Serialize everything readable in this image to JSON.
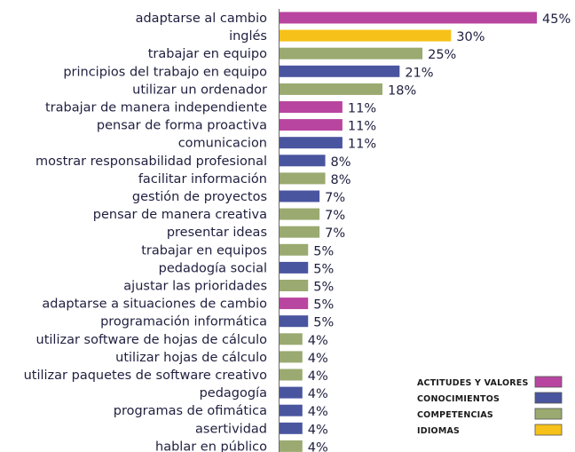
{
  "chart_data": {
    "type": "bar",
    "orientation": "horizontal",
    "value_suffix": "%",
    "grid": false,
    "legend_position": "bottom-right",
    "colors": {
      "ACTITUDES Y VALORES": "#b8459f",
      "CONOCIMIENTOS": "#4a55a0",
      "COMPETENCIAS": "#9aaa70",
      "IDIOMAS": "#f6c118"
    },
    "legend": [
      "ACTITUDES Y VALORES",
      "CONOCIMIENTOS",
      "COMPETENCIAS",
      "IDIOMAS"
    ],
    "categories": [
      "adaptarse al cambio",
      "inglés",
      "trabajar en equipo",
      "principios del trabajo en equipo",
      "utilizar un ordenador",
      "trabajar de manera independiente",
      "pensar de forma proactiva",
      "comunicacion",
      "mostrar responsabilidad profesional",
      "facilitar información",
      "gestión de proyectos",
      "pensar de manera creativa",
      "presentar ideas",
      "trabajar en equipos",
      "pedadogía social",
      "ajustar las prioridades",
      "adaptarse a situaciones de cambio",
      "programación informática",
      "utilizar software de hojas de cálculo",
      "utilizar hojas de cálculo",
      "utilizar paquetes de software creativo",
      "pedagogía",
      "programas de ofimática",
      "asertividad",
      "hablar en público"
    ],
    "values": [
      45,
      30,
      25,
      21,
      18,
      11,
      11,
      11,
      8,
      8,
      7,
      7,
      7,
      5,
      5,
      5,
      5,
      5,
      4,
      4,
      4,
      4,
      4,
      4,
      4
    ],
    "groups": [
      "ACTITUDES Y VALORES",
      "IDIOMAS",
      "COMPETENCIAS",
      "CONOCIMIENTOS",
      "COMPETENCIAS",
      "ACTITUDES Y VALORES",
      "ACTITUDES Y VALORES",
      "CONOCIMIENTOS",
      "CONOCIMIENTOS",
      "COMPETENCIAS",
      "CONOCIMIENTOS",
      "COMPETENCIAS",
      "COMPETENCIAS",
      "COMPETENCIAS",
      "CONOCIMIENTOS",
      "COMPETENCIAS",
      "ACTITUDES Y VALORES",
      "CONOCIMIENTOS",
      "COMPETENCIAS",
      "COMPETENCIAS",
      "COMPETENCIAS",
      "CONOCIMIENTOS",
      "CONOCIMIENTOS",
      "CONOCIMIENTOS",
      "COMPETENCIAS"
    ],
    "xlim": [
      0,
      45
    ]
  }
}
